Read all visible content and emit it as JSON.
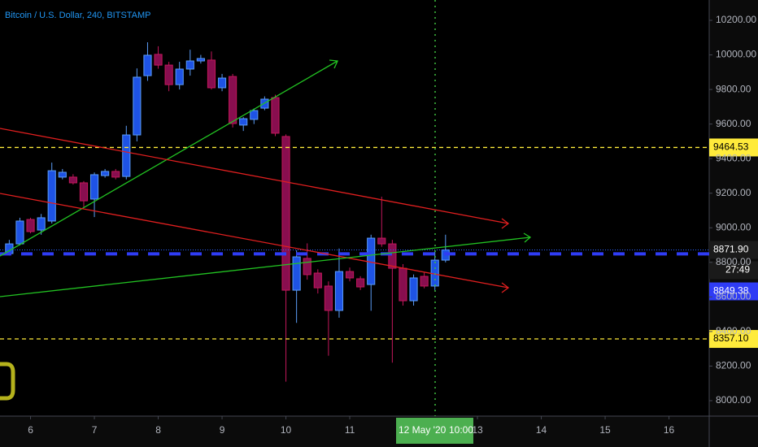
{
  "chart_data": {
    "type": "candlestick",
    "title": "Bitcoin / U.S. Dollar, 240, BITSTAMP",
    "series": {
      "open": [
        8851,
        8907,
        9048,
        8987,
        9039,
        9293,
        9293,
        9260,
        9166,
        9302,
        9326,
        9297,
        9537,
        9880,
        10003,
        9941,
        9828,
        9918,
        9965,
        9970,
        9810,
        9875,
        9594,
        9627,
        9692,
        9753,
        9528,
        8639,
        8823,
        8738,
        8663,
        8522,
        8747,
        8705,
        8672,
        8940,
        8907,
        8766,
        8578,
        8719,
        8663,
        8813
      ],
      "high": [
        8930,
        9058,
        9058,
        9080,
        9377,
        9340,
        9310,
        9270,
        9320,
        9340,
        9340,
        9590,
        9922,
        10073,
        10050,
        9960,
        9960,
        10030,
        10000,
        10020,
        9890,
        9890,
        9640,
        9690,
        9760,
        9770,
        9540,
        8870,
        8910,
        8760,
        8690,
        8880,
        8770,
        8720,
        8960,
        9180,
        8930,
        8790,
        8730,
        8740,
        8860,
        8960
      ],
      "low": [
        8840,
        8898,
        8968,
        8960,
        9025,
        9280,
        9250,
        9118,
        9062,
        9290,
        9280,
        9280,
        9500,
        9850,
        9920,
        9790,
        9800,
        9880,
        9950,
        9800,
        9790,
        9580,
        9560,
        9600,
        9680,
        9530,
        8110,
        8450,
        8700,
        8620,
        8260,
        8480,
        8690,
        8640,
        8520,
        8890,
        8220,
        8550,
        8550,
        8650,
        8640,
        8800
      ],
      "close": [
        8907,
        9039,
        8978,
        9058,
        9330,
        9321,
        9260,
        9156,
        9307,
        9326,
        9293,
        9537,
        9871,
        9998,
        9941,
        9828,
        9918,
        9965,
        9979,
        9810,
        9866,
        9603,
        9631,
        9678,
        9744,
        9547,
        8639,
        8832,
        8729,
        8653,
        8522,
        8747,
        8710,
        8658,
        8940,
        8907,
        8766,
        8578,
        8710,
        8663,
        8813,
        8871.9
      ]
    },
    "up_color": "#1e53e5",
    "down_color": "#880e4f",
    "xlim": [
      -0.87,
      65.78
    ],
    "xticks": [
      {
        "value": 2,
        "label": "6"
      },
      {
        "value": 8,
        "label": "7"
      },
      {
        "value": 14,
        "label": "8"
      },
      {
        "value": 20,
        "label": "9"
      },
      {
        "value": 26,
        "label": "10"
      },
      {
        "value": 32,
        "label": "11"
      },
      {
        "value": 44,
        "label": "13"
      },
      {
        "value": 50,
        "label": "14"
      },
      {
        "value": 56,
        "label": "15"
      },
      {
        "value": 62,
        "label": "16"
      }
    ],
    "ylim": [
      7910.7,
      10317.5
    ],
    "yticks": [
      {
        "value": 8000,
        "label": "8000.00"
      },
      {
        "value": 8200,
        "label": "8200.00"
      },
      {
        "value": 8400,
        "label": "8400.00"
      },
      {
        "value": 8600,
        "label": "8600.00"
      },
      {
        "value": 8800,
        "label": "8800.00"
      },
      {
        "value": 9000,
        "label": "9000.00"
      },
      {
        "value": 9200,
        "label": "9200.00"
      },
      {
        "value": 9400,
        "label": "9400.00"
      },
      {
        "value": 9600,
        "label": "9600.00"
      },
      {
        "value": 9800,
        "label": "9800.00"
      },
      {
        "value": 10000,
        "label": "10000.00"
      },
      {
        "value": 10200,
        "label": "10200.00"
      }
    ],
    "price_lines": [
      {
        "price": 9464.53,
        "color": "#ffeb3b"
      },
      {
        "price": {
          "value": 8357.1,
          "label": "8357.10"
        },
        "color": "#ffeb3b"
      }
    ],
    "last_price": {
      "value": 8871.9,
      "label": "8871.90"
    },
    "countdown": "27:49",
    "order_line": {
      "price": 8849.38,
      "color": "#2f3cf5"
    },
    "crosshair": {
      "date": "12 May '20",
      "time": "10:00"
    }
  }
}
